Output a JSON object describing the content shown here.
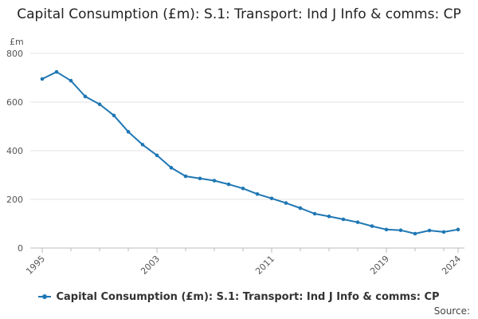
{
  "chart_data": {
    "type": "line",
    "title": "Capital Consumption (£m): S.1: Transport: Ind J Info & comms: CP",
    "ylabel": "£m",
    "xlabel": "",
    "ylim": [
      0,
      800
    ],
    "yticks": [
      0,
      200,
      400,
      600,
      800
    ],
    "xlim": [
      1995,
      2024
    ],
    "xticks": [
      1995,
      2003,
      2011,
      2019,
      2024
    ],
    "x": [
      1995,
      1996,
      1997,
      1998,
      1999,
      2000,
      2001,
      2002,
      2003,
      2004,
      2005,
      2006,
      2007,
      2008,
      2009,
      2010,
      2011,
      2012,
      2013,
      2014,
      2015,
      2016,
      2017,
      2018,
      2019,
      2020,
      2021,
      2022,
      2023,
      2024
    ],
    "series": [
      {
        "name": "Capital Consumption (£m): S.1: Transport: Ind J Info & comms: CP",
        "color": "#1f77b4",
        "values": [
          695,
          724,
          688,
          623,
          591,
          545,
          478,
          425,
          381,
          330,
          295,
          286,
          277,
          262,
          245,
          222,
          204,
          185,
          164,
          141,
          130,
          118,
          106,
          90,
          76,
          73,
          59,
          72,
          66,
          76
        ]
      }
    ],
    "legend": "bottom",
    "grid": true
  },
  "footer": {
    "source_label": "Source:"
  }
}
